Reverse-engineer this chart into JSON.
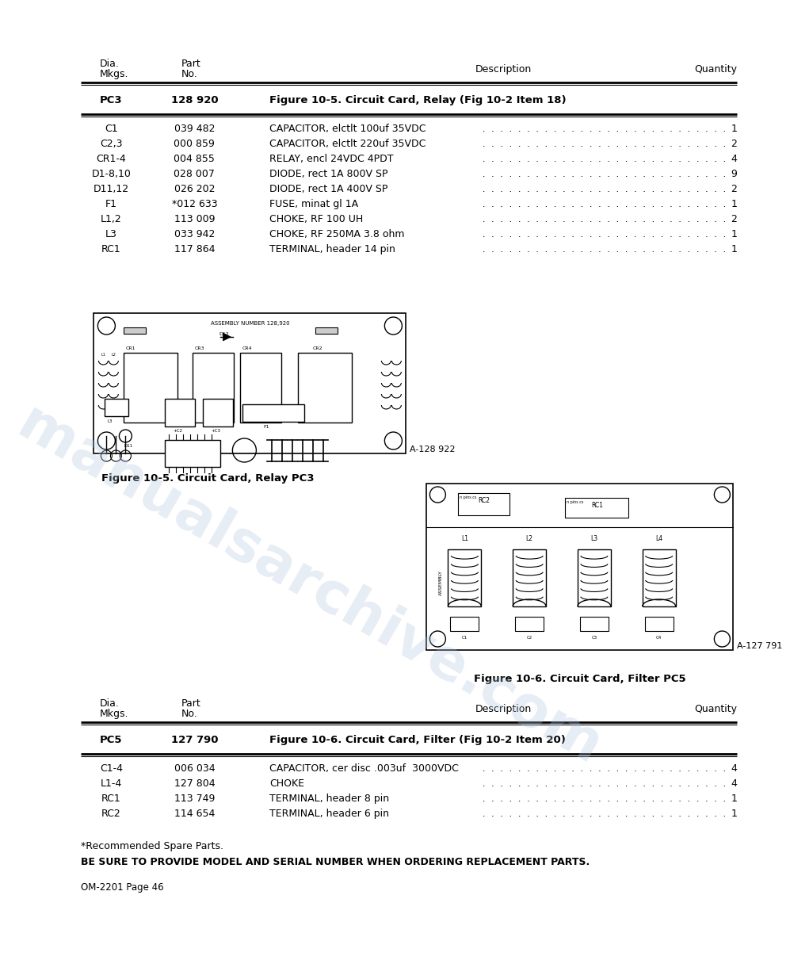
{
  "page_bg": "#ffffff",
  "table1_assembly": {
    "dia": "PC3",
    "part": "128 920",
    "desc": "Figure 10-5. Circuit Card, Relay (Fig 10-2 Item 18)"
  },
  "table1_rows": [
    {
      "dia": "C1",
      "part": "039 482",
      "desc": "CAPACITOR, elctlt 100uf 35VDC",
      "qty": "1"
    },
    {
      "dia": "C2,3",
      "part": "000 859",
      "desc": "CAPACITOR, elctlt 220uf 35VDC",
      "qty": "2"
    },
    {
      "dia": "CR1-4",
      "part": "004 855",
      "desc": "RELAY, encl 24VDC 4PDT",
      "qty": "4"
    },
    {
      "dia": "D1-8,10",
      "part": "028 007",
      "desc": "DIODE, rect 1A 800V SP",
      "qty": "9"
    },
    {
      "dia": "D11,12",
      "part": "026 202",
      "desc": "DIODE, rect 1A 400V SP",
      "qty": "2"
    },
    {
      "dia": "F1",
      "part": "*012 633",
      "desc": "FUSE, minat gl 1A",
      "qty": "1"
    },
    {
      "dia": "L1,2",
      "part": "113 009",
      "desc": "CHOKE, RF 100 UH",
      "qty": "2"
    },
    {
      "dia": "L3",
      "part": "033 942",
      "desc": "CHOKE, RF 250MA 3.8 ohm",
      "qty": "1"
    },
    {
      "dia": "RC1",
      "part": "117 864",
      "desc": "TERMINAL, header 14 pin",
      "qty": "1"
    }
  ],
  "fig1_label": "A-128 922",
  "fig1_caption": "Figure 10-5. Circuit Card, Relay PC3",
  "fig2_label": "A-127 791",
  "fig2_caption": "Figure 10-6. Circuit Card, Filter PC5",
  "table2_assembly": {
    "dia": "PC5",
    "part": "127 790",
    "desc": "Figure 10-6. Circuit Card, Filter (Fig 10-2 Item 20)"
  },
  "table2_rows": [
    {
      "dia": "C1-4",
      "part": "006 034",
      "desc": "CAPACITOR, cer disc .003uf  3000VDC",
      "qty": "4"
    },
    {
      "dia": "L1-4",
      "part": "127 804",
      "desc": "CHOKE",
      "qty": "4"
    },
    {
      "dia": "RC1",
      "part": "113 749",
      "desc": "TERMINAL, header 8 pin",
      "qty": "1"
    },
    {
      "dia": "RC2",
      "part": "114 654",
      "desc": "TERMINAL, header 6 pin",
      "qty": "1"
    }
  ],
  "footnote1": "*Recommended Spare Parts.",
  "footnote2": "BE SURE TO PROVIDE MODEL AND SERIAL NUMBER WHEN ORDERING REPLACEMENT PARTS.",
  "page_num": "OM-2201 Page 46",
  "watermark": "manualsarchive.com"
}
